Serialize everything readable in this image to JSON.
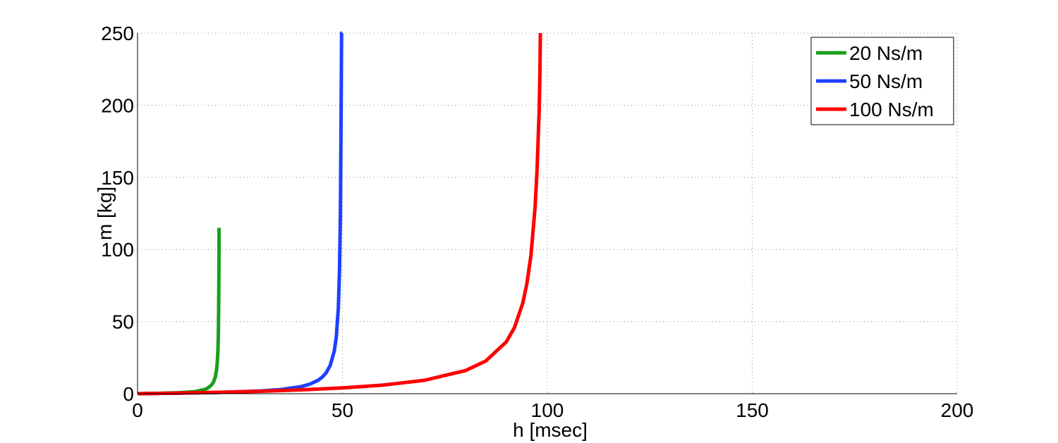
{
  "chart_data": {
    "type": "line",
    "title": "",
    "xlabel": "h [msec]",
    "ylabel": "m [kg]",
    "xlim": [
      0,
      200
    ],
    "ylim": [
      0,
      250
    ],
    "xticks": [
      0,
      50,
      100,
      150,
      200
    ],
    "yticks": [
      0,
      50,
      100,
      150,
      200,
      250
    ],
    "xtick_labels": [
      "0",
      "50",
      "100",
      "150",
      "200"
    ],
    "ytick_labels": [
      "0",
      "50",
      "100",
      "150",
      "200",
      "250"
    ],
    "grid": true,
    "legend_position": "top-right",
    "series": [
      {
        "name": "20 Ns/m",
        "color": "#1a9e1a",
        "x": [
          0,
          5,
          10,
          14,
          16,
          17,
          18,
          18.5,
          19,
          19.3,
          19.5,
          19.6,
          19.7,
          19.8,
          19.85,
          19.9
        ],
        "y": [
          0,
          0.25,
          0.67,
          1.4,
          2.7,
          3.6,
          5.9,
          7.9,
          11.8,
          17.0,
          23.6,
          29.4,
          39.0,
          58.2,
          77.3,
          115
        ]
      },
      {
        "name": "50 Ns/m",
        "color": "#1f3fff",
        "x": [
          0,
          10,
          20,
          30,
          35,
          40,
          42,
          44,
          45,
          46,
          47,
          48,
          48.5,
          49,
          49.3,
          49.5,
          49.7,
          49.8,
          49.9
        ],
        "y": [
          0,
          0.33,
          0.83,
          1.9,
          2.9,
          5.0,
          6.6,
          9.2,
          11.3,
          14.4,
          19.6,
          29.5,
          39.3,
          59.4,
          87.0,
          124,
          208,
          250,
          250
        ]
      },
      {
        "name": "100 Ns/m",
        "color": "#ff0000",
        "x": [
          0,
          10,
          20,
          30,
          40,
          50,
          60,
          70,
          80,
          85,
          90,
          92,
          94,
          95,
          96,
          97,
          97.5,
          98,
          98.2,
          98.3
        ],
        "y": [
          0,
          0.42,
          1.0,
          1.7,
          2.7,
          4.0,
          6.0,
          9.3,
          16.0,
          22.7,
          36.0,
          46.0,
          62.7,
          76.0,
          96.0,
          129,
          156,
          196,
          222,
          250
        ]
      }
    ]
  }
}
